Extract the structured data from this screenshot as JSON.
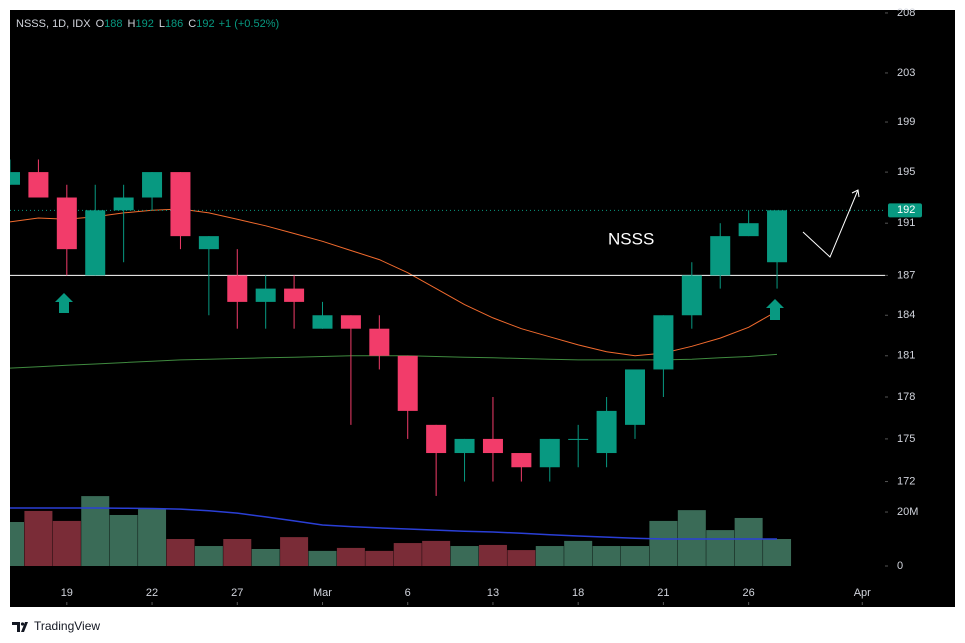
{
  "header": {
    "symbol": "NSSS, 1D, IDX",
    "ohlc": [
      {
        "key": "O",
        "value": "188"
      },
      {
        "key": "H",
        "value": "192"
      },
      {
        "key": "L",
        "value": "186"
      },
      {
        "key": "C",
        "value": "192"
      }
    ],
    "change": "+1 (+0.52%)"
  },
  "chart_data": {
    "type": "candlestick",
    "log_scale": true,
    "up_color": "#089981",
    "down_color": "#f23c6a",
    "open": [
      194,
      195,
      193,
      187,
      192,
      193,
      195,
      189,
      187,
      185,
      186,
      183,
      184,
      183,
      181,
      176,
      174,
      175,
      174,
      173,
      175,
      174,
      176,
      180,
      184,
      187,
      190,
      188
    ],
    "high": [
      196,
      196,
      194,
      194,
      194,
      195,
      195,
      190,
      189,
      187,
      187,
      185,
      184,
      184,
      181,
      176,
      175,
      178,
      174,
      175,
      176,
      178,
      180,
      184,
      188,
      191,
      192,
      192
    ],
    "low": [
      194,
      193,
      187,
      187,
      188,
      192,
      189,
      184,
      183,
      183,
      183,
      183,
      176,
      180,
      175,
      171,
      172,
      172,
      172,
      172,
      173,
      173,
      175,
      178,
      183,
      186,
      190,
      186
    ],
    "close": [
      195,
      193,
      189,
      192,
      193,
      195,
      190,
      190,
      185,
      186,
      185,
      184,
      183,
      181,
      177,
      174,
      175,
      174,
      173,
      175,
      175,
      177,
      180,
      184,
      187,
      190,
      191,
      192
    ],
    "volume": [
      16.3,
      20.4,
      16.7,
      25.9,
      18.9,
      21.1,
      10,
      7.4,
      10,
      6.3,
      10.7,
      5.6,
      6.7,
      5.6,
      8.5,
      9.3,
      7.4,
      7.8,
      5.9,
      7.4,
      9.3,
      7.4,
      7.4,
      16.7,
      20.7,
      13.3,
      17.8,
      10
    ],
    "volume_up_color": "#3a6b57",
    "volume_down_color": "#7a2c37",
    "volume_ma": {
      "color": "#2a3fd6",
      "values": [
        21.5,
        21.5,
        21.5,
        21.5,
        21.4,
        21.3,
        21.1,
        20.5,
        19.6,
        18.2,
        16.7,
        15.2,
        14.6,
        14.1,
        13.7,
        13.3,
        12.9,
        12.6,
        12.1,
        11.6,
        11.1,
        10.7,
        10.3,
        10,
        10,
        10,
        10,
        10
      ]
    },
    "lines": [
      {
        "color": "#f26b2e",
        "values": [
          191.1,
          191.4,
          191.3,
          191.5,
          191.8,
          192,
          192.1,
          191.8,
          191.3,
          190.8,
          190.2,
          189.6,
          188.9,
          188.2,
          187.2,
          186,
          184.8,
          183.8,
          183,
          182.4,
          181.8,
          181.3,
          181,
          181.2,
          181.7,
          182.3,
          183.1,
          184.3
        ]
      },
      {
        "color": "#3f8a3f",
        "values": [
          180.1,
          180.2,
          180.3,
          180.4,
          180.5,
          180.6,
          180.7,
          180.75,
          180.8,
          180.85,
          180.9,
          180.95,
          181,
          181,
          181,
          180.95,
          180.9,
          180.85,
          180.8,
          180.75,
          180.7,
          180.7,
          180.7,
          180.7,
          180.75,
          180.85,
          180.95,
          181.1
        ]
      }
    ],
    "xlim": [
      0,
      30.8
    ],
    "xticks": [
      {
        "value": 2,
        "label": "19"
      },
      {
        "value": 5,
        "label": "22"
      },
      {
        "value": 8,
        "label": "27"
      },
      {
        "value": 11,
        "label": "Mar"
      },
      {
        "value": 14,
        "label": "6"
      },
      {
        "value": 17,
        "label": "13"
      },
      {
        "value": 20,
        "label": "18"
      },
      {
        "value": 23,
        "label": "21"
      },
      {
        "value": 26,
        "label": "26"
      },
      {
        "value": 30,
        "label": "Apr"
      }
    ],
    "ylim": [
      163.6,
      208.25
    ],
    "yticks": [
      208,
      203,
      199,
      195,
      191,
      187,
      184,
      181,
      178,
      175,
      172
    ],
    "y2lim": [
      0,
      206
    ],
    "y2ticks": [
      {
        "value": 20,
        "label": "20M"
      },
      0
    ],
    "hline": 187,
    "last_price": 192,
    "annotation": "NSSS"
  },
  "footer": {
    "brand": "TradingView"
  }
}
